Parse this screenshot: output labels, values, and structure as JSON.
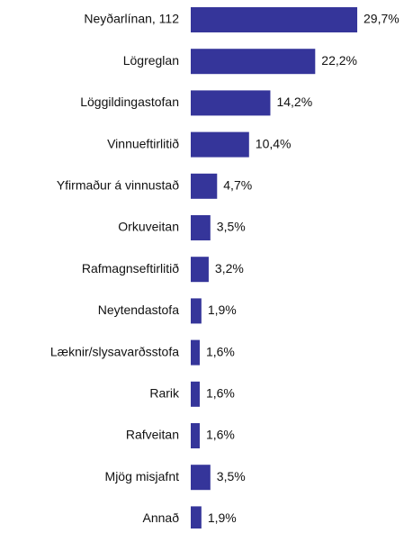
{
  "chart_data": {
    "type": "bar",
    "orientation": "horizontal",
    "categories": [
      "Neyðarlínan, 112",
      "Lögreglan",
      "Löggildingastofan",
      "Vinnueftirlitið",
      "Yfirmaður á vinnustað",
      "Orkuveitan",
      "Rafmagnseftirlitið",
      "Neytendastofa",
      "Læknir/slysavarðsstofa",
      "Rarik",
      "Rafveitan",
      "Mjög misjafnt",
      "Annað"
    ],
    "values": [
      29.7,
      22.2,
      14.2,
      10.4,
      4.7,
      3.5,
      3.2,
      1.9,
      1.6,
      1.6,
      1.6,
      3.5,
      1.9
    ],
    "value_labels": [
      "29,7%",
      "22,2%",
      "14,2%",
      "10,4%",
      "4,7%",
      "3,5%",
      "3,2%",
      "1,9%",
      "1,6%",
      "1,6%",
      "1,6%",
      "3,5%",
      "1,9%"
    ],
    "color": "#35359a"
  }
}
